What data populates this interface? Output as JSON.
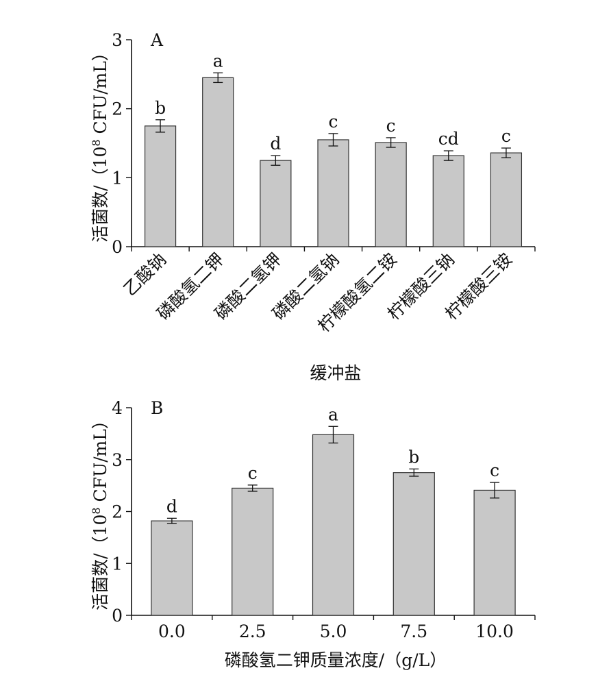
{
  "chart_data": [
    {
      "type": "bar",
      "panel_label": "A",
      "categories": [
        "乙酸钠",
        "磷酸氢二钾",
        "磷酸二氢钾",
        "磷酸二氢钠",
        "柠檬酸氢二铵",
        "柠檬酸三钠",
        "柠檬酸三铵"
      ],
      "values": [
        1.75,
        2.45,
        1.25,
        1.55,
        1.51,
        1.32,
        1.36
      ],
      "errors": [
        0.09,
        0.07,
        0.07,
        0.09,
        0.07,
        0.07,
        0.07
      ],
      "significance": [
        "b",
        "a",
        "d",
        "c",
        "c",
        "cd",
        "c"
      ],
      "xlabel": "缓冲盐",
      "ylabel_main": "活菌数/（10",
      "ylabel_sup": "8",
      "ylabel_tail": " CFU/mL）",
      "ylim": [
        0,
        3
      ],
      "yticks": [
        "0",
        "1",
        "2",
        "3"
      ],
      "bar_color": "#c8c8c8"
    },
    {
      "type": "bar",
      "panel_label": "B",
      "categories": [
        "0.0",
        "2.5",
        "5.0",
        "7.5",
        "10.0"
      ],
      "values": [
        1.82,
        2.45,
        3.48,
        2.75,
        2.41
      ],
      "errors": [
        0.05,
        0.06,
        0.16,
        0.07,
        0.15
      ],
      "significance": [
        "d",
        "c",
        "a",
        "b",
        "c"
      ],
      "xlabel": "磷酸氢二钾质量浓度/（g/L）",
      "ylabel_main": "活菌数/（10",
      "ylabel_sup": "8",
      "ylabel_tail": " CFU/mL）",
      "ylim": [
        0,
        4
      ],
      "yticks": [
        "0",
        "1",
        "2",
        "3",
        "4"
      ],
      "bar_color": "#c8c8c8"
    }
  ]
}
